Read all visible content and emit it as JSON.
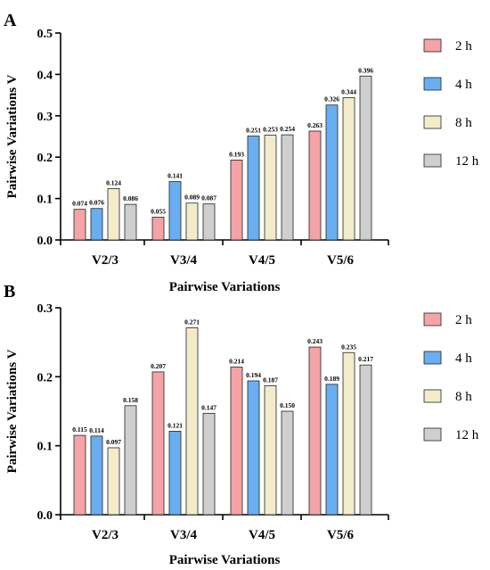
{
  "chart_data": [
    {
      "panel": "A",
      "type": "bar",
      "categories": [
        "V2/3",
        "V3/4",
        "V4/5",
        "V5/6"
      ],
      "series": [
        {
          "name": "2 h",
          "color": "#f4a3a6",
          "values": [
            0.074,
            0.055,
            0.193,
            0.263
          ],
          "labels": [
            "0.074",
            "0.055",
            "0.193",
            "0.263"
          ]
        },
        {
          "name": "4 h",
          "color": "#6aaef2",
          "values": [
            0.076,
            0.141,
            0.251,
            0.326
          ],
          "labels": [
            "0.076",
            "0.141",
            "0.251",
            "0.326"
          ]
        },
        {
          "name": "8 h",
          "color": "#f2eccb",
          "values": [
            0.124,
            0.089,
            0.253,
            0.344
          ],
          "labels": [
            "0.124",
            "0.089",
            "0.253",
            "0.344"
          ]
        },
        {
          "name": "12 h",
          "color": "#cfcfcf",
          "values": [
            0.086,
            0.087,
            0.254,
            0.396
          ],
          "labels": [
            "0.086",
            "0.087",
            "0.254",
            "0.396"
          ]
        }
      ],
      "yticks": [
        "0.0",
        "0.1",
        "0.2",
        "0.3",
        "0.4",
        "0.5"
      ],
      "ylim": [
        0,
        0.5
      ],
      "xlabel": "Pairwise Variations",
      "ylabel": "Pairwise Variations V",
      "legend": "right",
      "grid": false
    },
    {
      "panel": "B",
      "type": "bar",
      "categories": [
        "V2/3",
        "V3/4",
        "V4/5",
        "V5/6"
      ],
      "series": [
        {
          "name": "2 h",
          "color": "#f4a3a6",
          "values": [
            0.115,
            0.207,
            0.214,
            0.243
          ],
          "labels": [
            "0.115",
            "0.207",
            "0.214",
            "0.243"
          ]
        },
        {
          "name": "4 h",
          "color": "#6aaef2",
          "values": [
            0.114,
            0.121,
            0.194,
            0.189
          ],
          "labels": [
            "0.114",
            "0.121",
            "0.194",
            "0.189"
          ]
        },
        {
          "name": "8 h",
          "color": "#f2eccb",
          "values": [
            0.097,
            0.271,
            0.187,
            0.235
          ],
          "labels": [
            "0.097",
            "0.271",
            "0.187",
            "0.235"
          ]
        },
        {
          "name": "12 h",
          "color": "#cfcfcf",
          "values": [
            0.158,
            0.147,
            0.15,
            0.217
          ],
          "labels": [
            "0.158",
            "0.147",
            "0.150",
            "0.217"
          ]
        }
      ],
      "yticks": [
        "0.0",
        "0.1",
        "0.2",
        "0.3"
      ],
      "ylim": [
        0,
        0.3
      ],
      "xlabel": "Pairwise Variations",
      "ylabel": "Pairwise Variations V",
      "legend": "right",
      "grid": false
    }
  ]
}
